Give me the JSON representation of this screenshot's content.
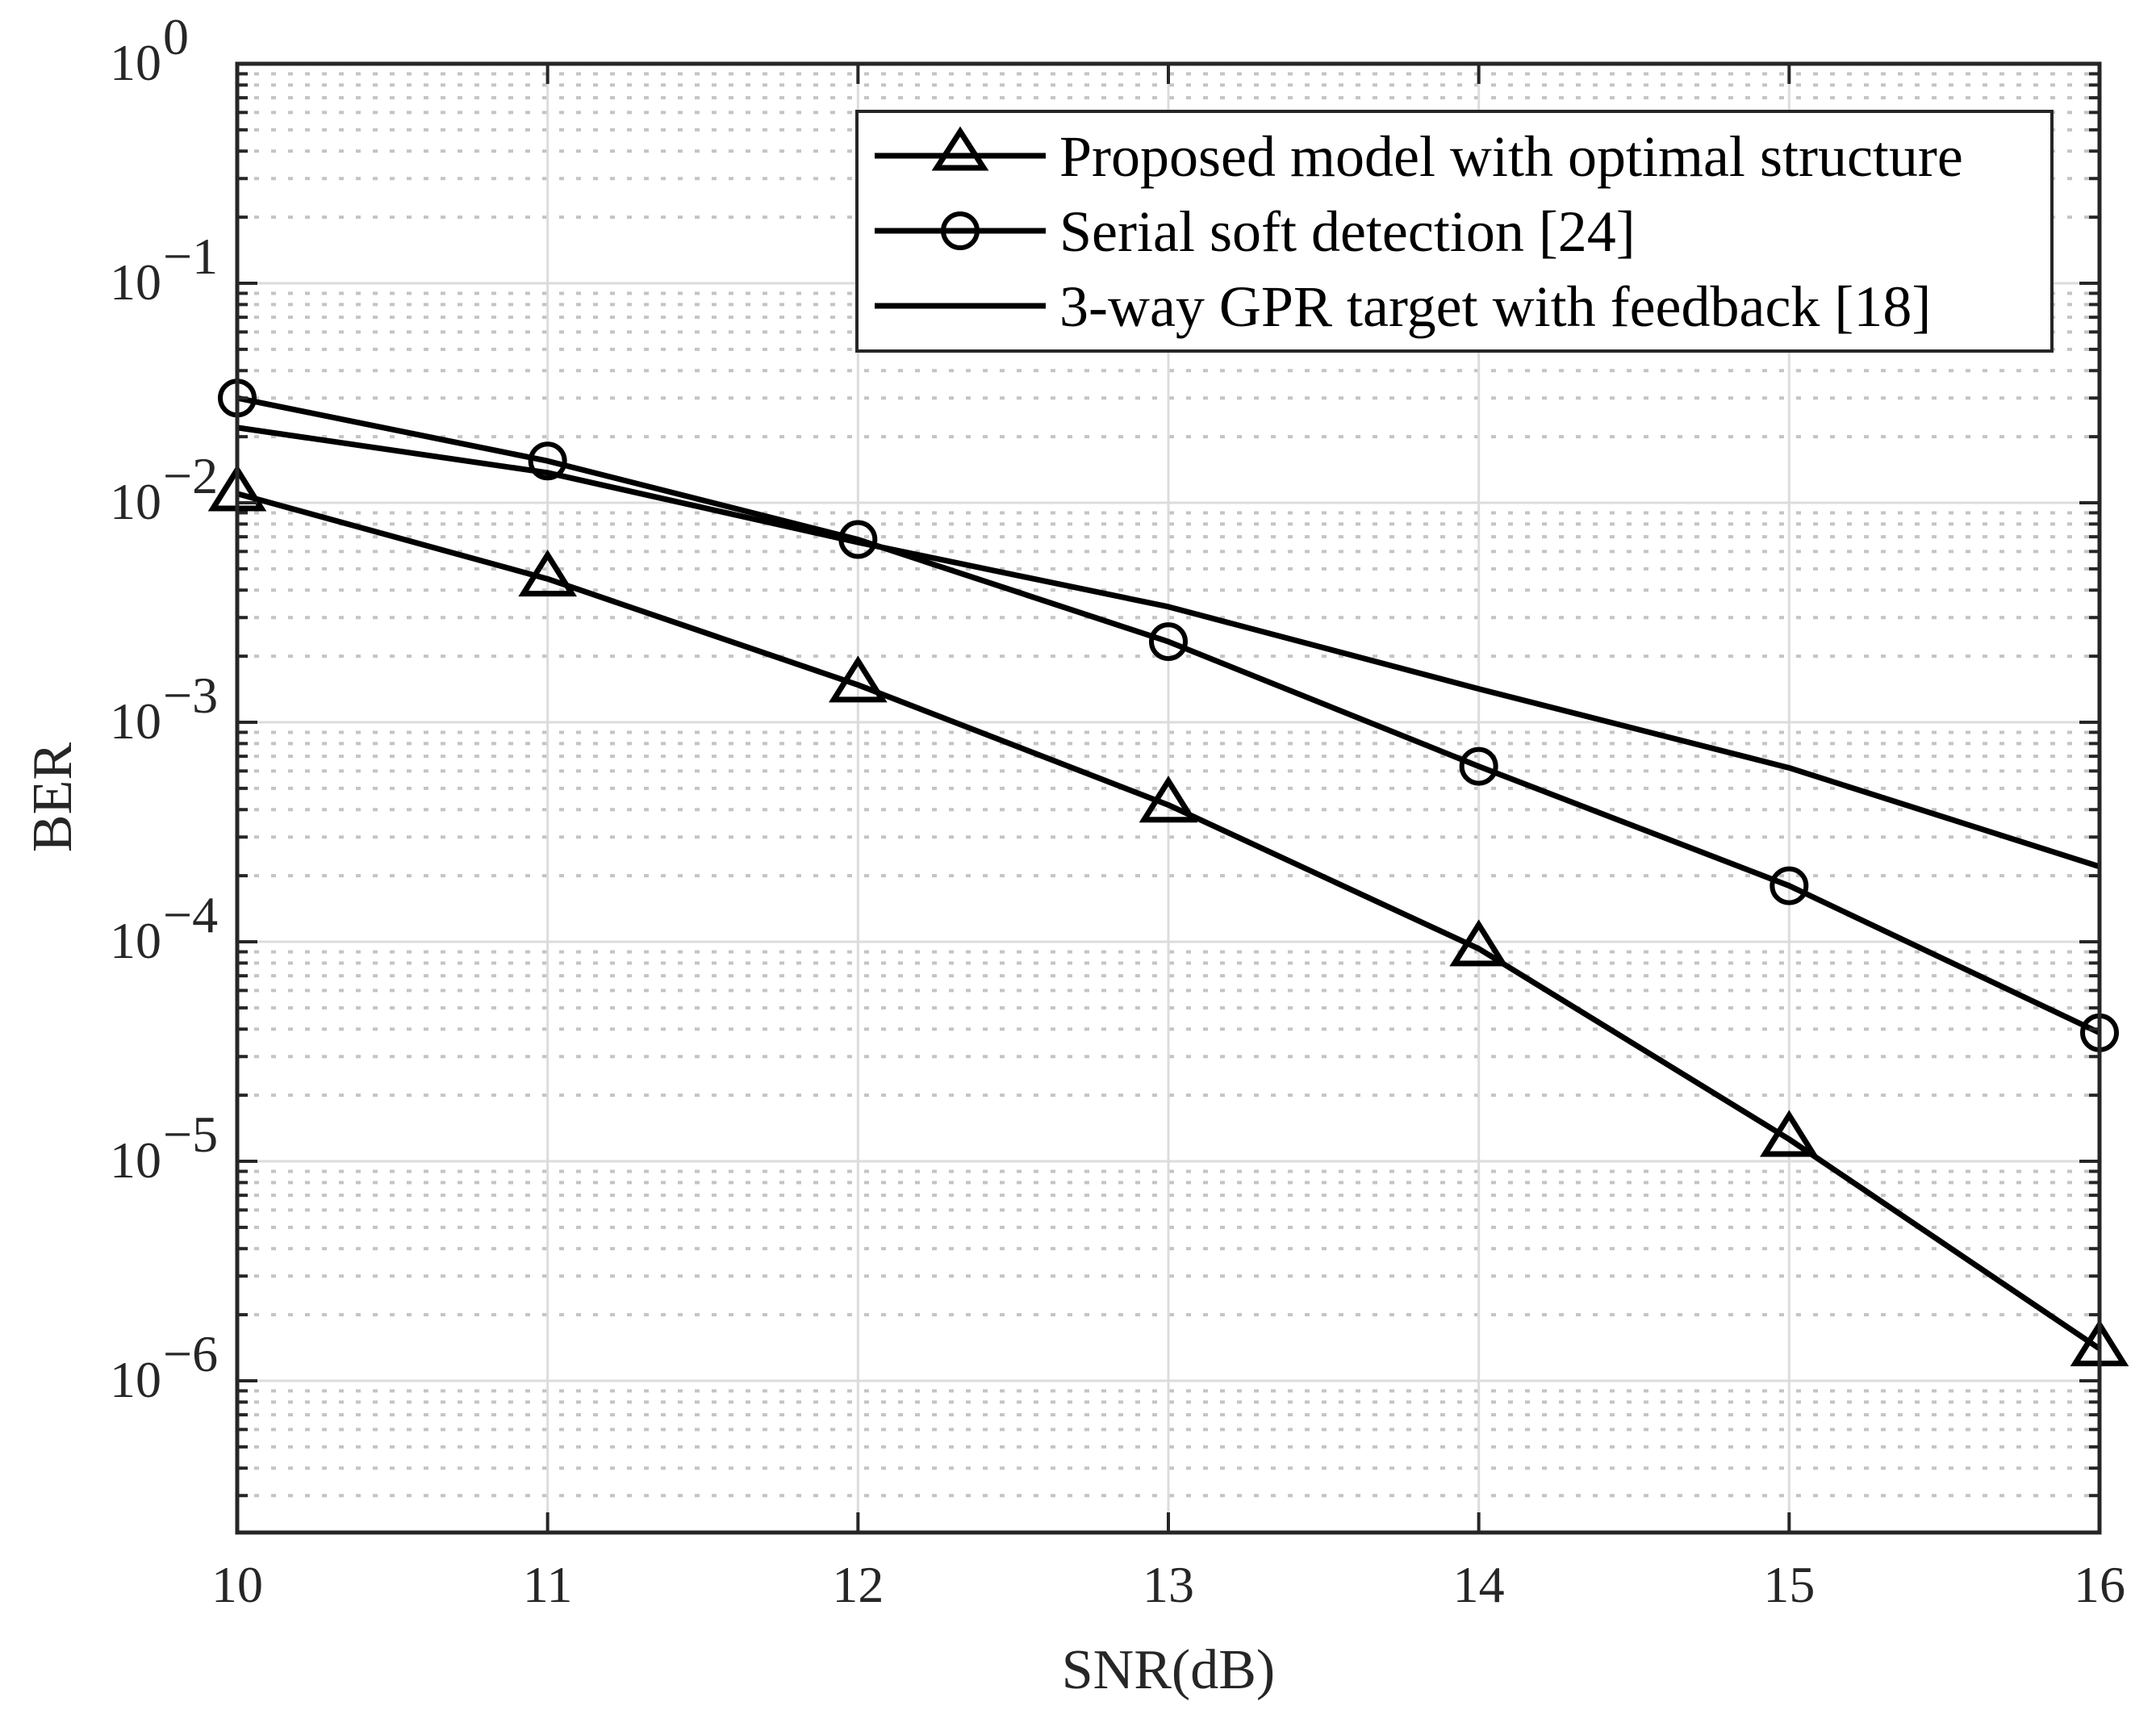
{
  "chart_data": {
    "type": "line",
    "title": "",
    "xlabel": "SNR(dB)",
    "ylabel": "BER",
    "x": [
      10,
      11,
      12,
      13,
      14,
      15,
      16
    ],
    "xlim": [
      10,
      16
    ],
    "ylim": [
      2e-07,
      1
    ],
    "yscale": "log",
    "grid": {
      "major": true,
      "minor_y": true
    },
    "legend_position": "upper right",
    "x_tick_labels": [
      "10",
      "11",
      "12",
      "13",
      "14",
      "15",
      "16"
    ],
    "y_tick_labels": [
      {
        "base": "10",
        "exp": "0",
        "value": 1
      },
      {
        "base": "10",
        "exp": "−1",
        "value": 0.1
      },
      {
        "base": "10",
        "exp": "−2",
        "value": 0.01
      },
      {
        "base": "10",
        "exp": "−3",
        "value": 0.001
      },
      {
        "base": "10",
        "exp": "−4",
        "value": 0.0001
      },
      {
        "base": "10",
        "exp": "−5",
        "value": 1e-05
      },
      {
        "base": "10",
        "exp": "−6",
        "value": 1e-06
      }
    ],
    "series": [
      {
        "name": "Proposed model with optimal structure",
        "marker": "triangle",
        "color": "#000000",
        "values": [
          0.011,
          0.0045,
          0.00148,
          0.00042,
          9.3e-05,
          1.26e-05,
          1.4e-06
        ]
      },
      {
        "name": "Serial soft detection [24]",
        "marker": "circle",
        "color": "#000000",
        "values": [
          0.03,
          0.0155,
          0.0068,
          0.00233,
          0.00063,
          0.00018,
          3.85e-05
        ]
      },
      {
        "name": "3-way GPR target with feedback [18]",
        "marker": "none",
        "color": "#000000",
        "values": [
          0.022,
          0.0137,
          0.0066,
          0.00336,
          0.00142,
          0.00062,
          0.00022
        ]
      }
    ]
  },
  "colors": {
    "axis": "#262626",
    "grid_major": "#dcdcdc",
    "grid_minor": "#c4c4c4",
    "line": "#000000",
    "background": "#ffffff"
  }
}
